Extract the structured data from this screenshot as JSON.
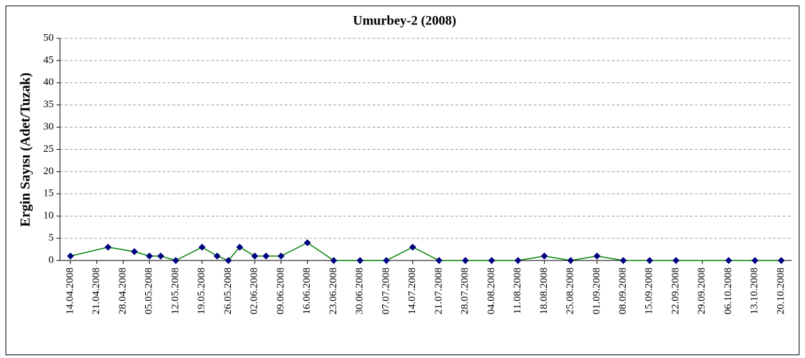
{
  "chart_data": {
    "type": "line",
    "title": "Umurbey-2 (2008)",
    "y_label": "Ergin Sayısı (Adet/Tuzak)",
    "x": [
      "14.04.2008",
      "24.04.2008",
      "01.05.2008",
      "05.05.2008",
      "08.05.2008",
      "12.05.2008",
      "19.05.2008",
      "23.05.2008",
      "26.05.2008",
      "29.05.2008",
      "02.06.2008",
      "05.06.2008",
      "09.06.2008",
      "16.06.2008",
      "23.06.2008",
      "30.06.2008",
      "07.07.2008",
      "14.07.2008",
      "21.07.2008",
      "28.07.2008",
      "04.08.2008",
      "11.08.2008",
      "18.08.2008",
      "25.08.2008",
      "01.09.2008",
      "08.09.2008",
      "15.09.2008",
      "22.09.2008",
      "06.10.2008",
      "13.10.2008",
      "20.10.2008"
    ],
    "series": [
      {
        "name": "Umurbey-2",
        "color": "#008000",
        "marker_color": "#000080",
        "values": [
          1,
          3,
          2,
          1,
          1,
          0,
          3,
          1,
          0,
          3,
          1,
          1,
          1,
          4,
          0,
          0,
          0,
          3,
          0,
          0,
          0,
          0,
          1,
          0,
          1,
          0,
          0,
          0,
          0,
          0,
          0
        ]
      }
    ],
    "xlim": [
      "14.04.2008",
      "20.10.2008"
    ],
    "xticks": [
      "14.04.2008",
      "21.04.2008",
      "28.04.2008",
      "05.05.2008",
      "12.05.2008",
      "19.05.2008",
      "26.05.2008",
      "02.06.2008",
      "09.06.2008",
      "16.06.2008",
      "23.06.2008",
      "30.06.2008",
      "07.07.2008",
      "14.07.2008",
      "21.07.2008",
      "28.07.2008",
      "04.08.2008",
      "11.08.2008",
      "18.08.2008",
      "25.08.2008",
      "01.09.2008",
      "08.09.2008",
      "15.09.2008",
      "22.09.2008",
      "29.09.2008",
      "06.10.2008",
      "13.10.2008",
      "20.10.2008"
    ],
    "ylim": [
      0,
      50
    ],
    "yticks": [
      0,
      5,
      10,
      15,
      20,
      25,
      30,
      35,
      40,
      45,
      50
    ],
    "grid": true
  }
}
